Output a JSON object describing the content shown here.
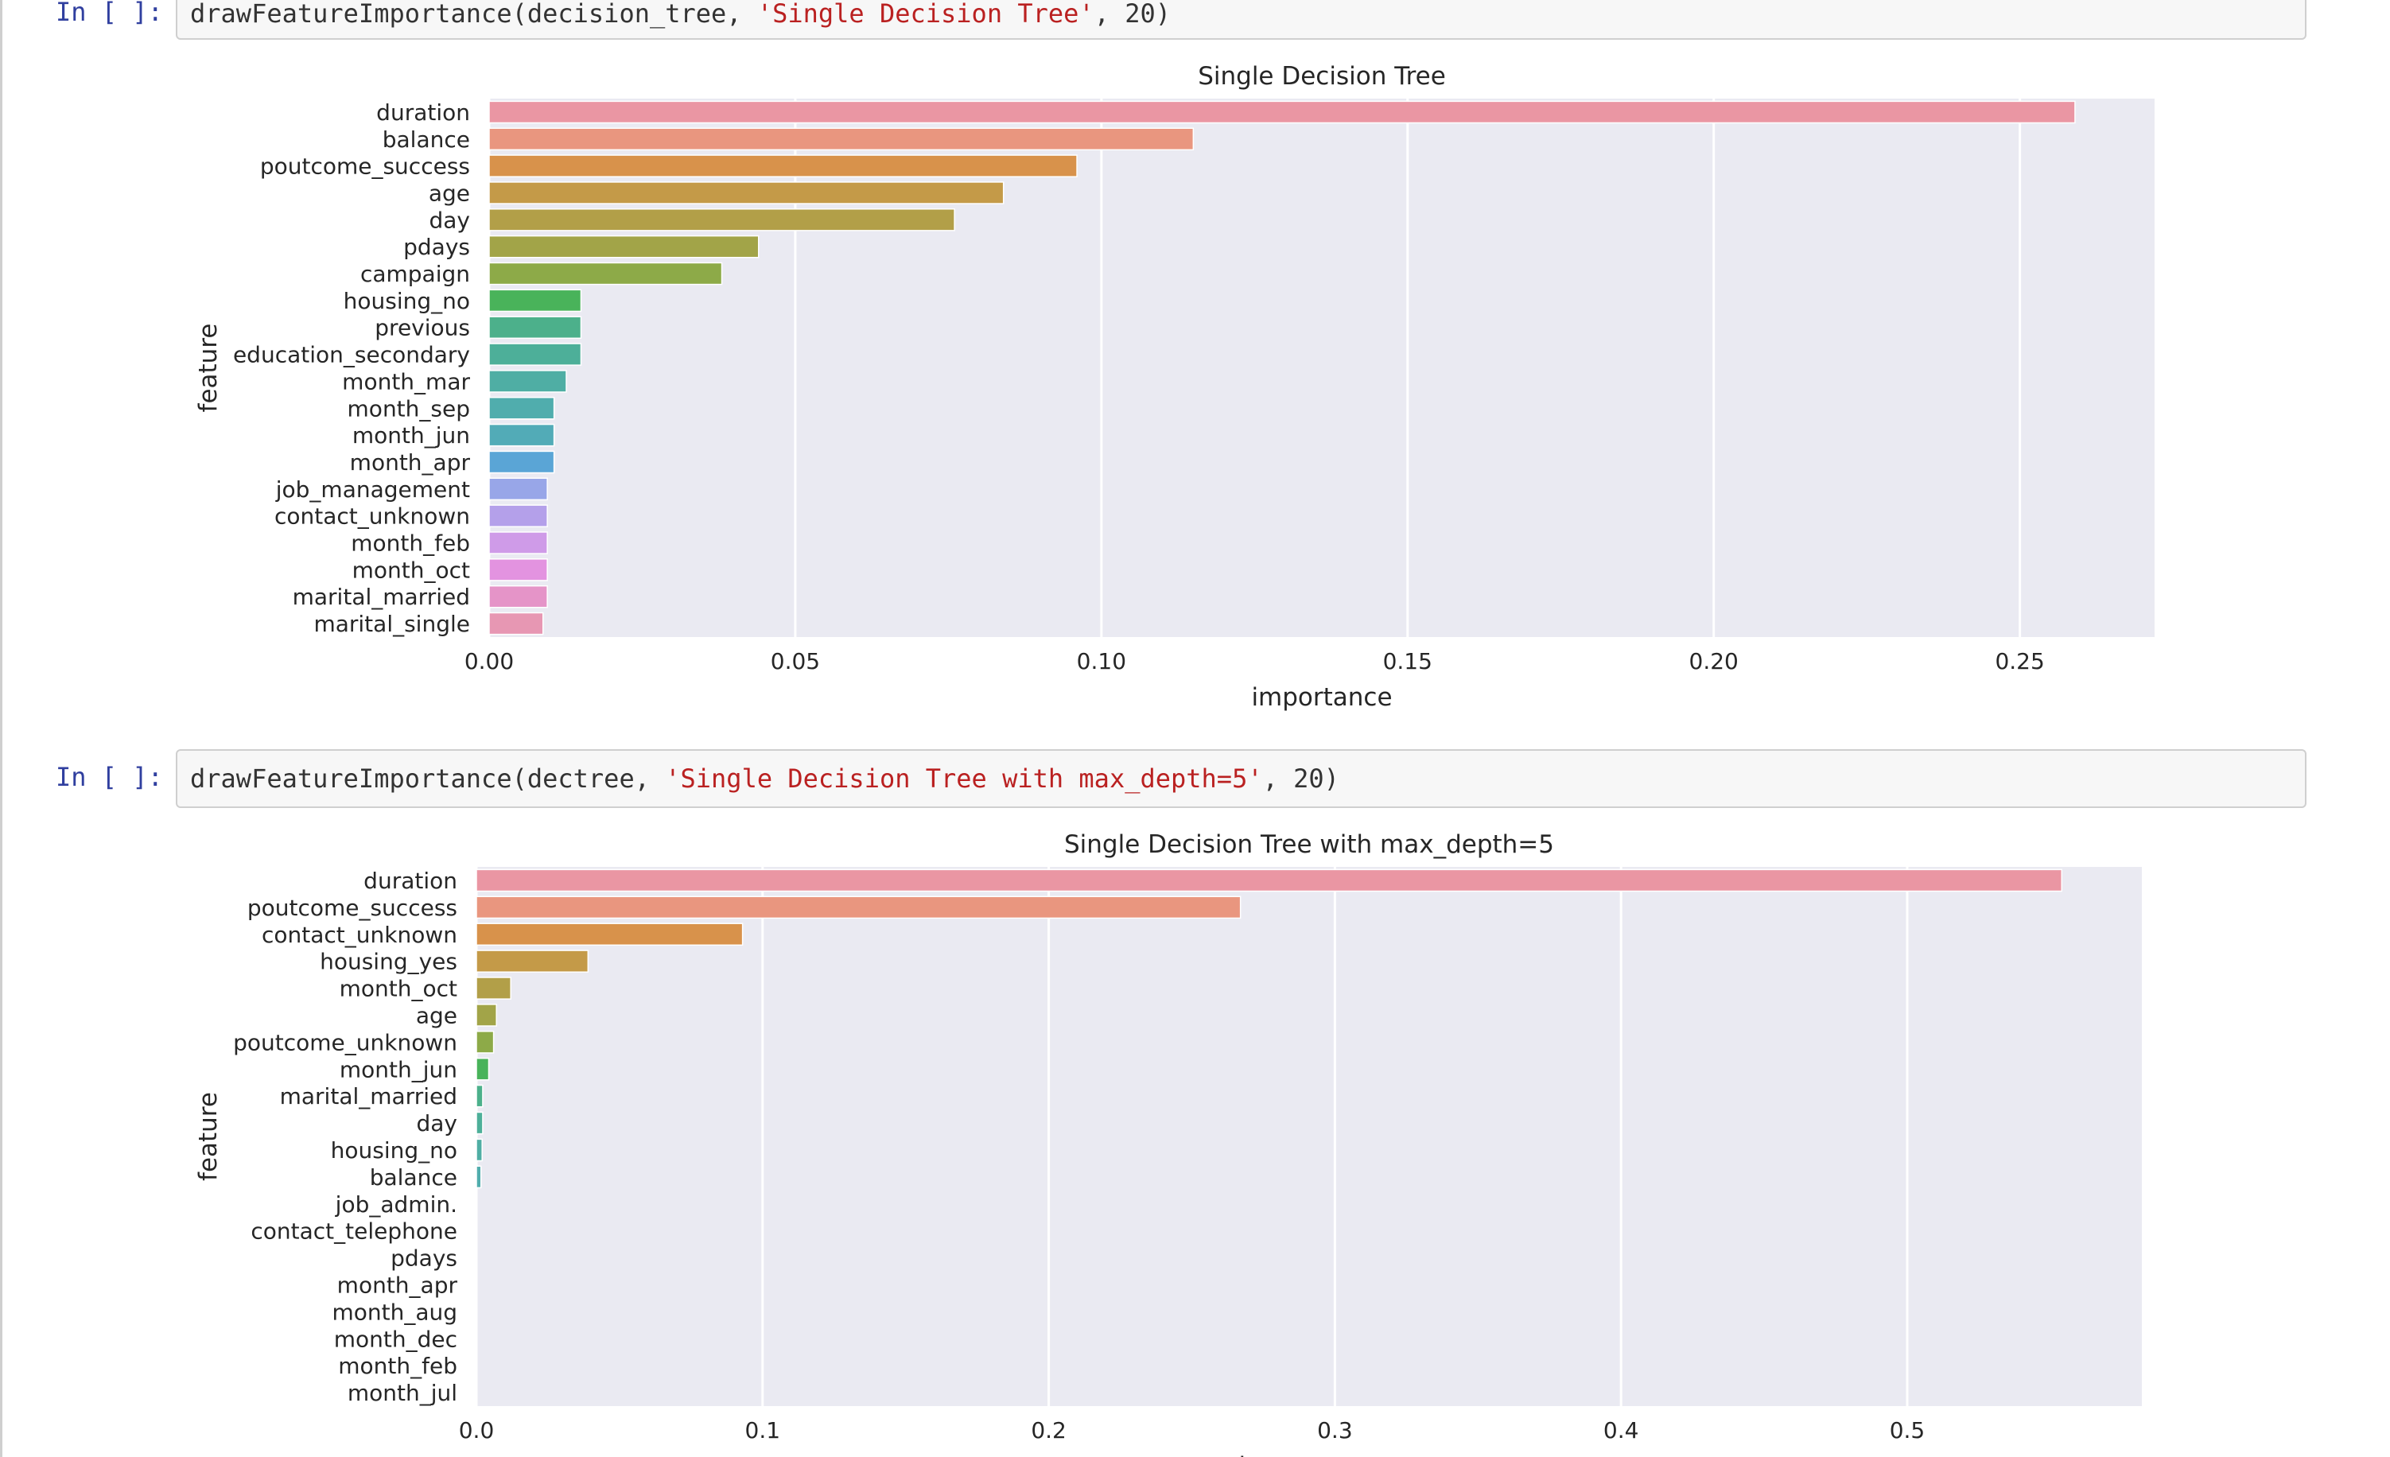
{
  "cells": [
    {
      "prompt": "In [ ]:",
      "code_prefix": "drawFeatureImportance(decision_tree, ",
      "code_string": "'Single Decision Tree'",
      "code_suffix": ", 20)"
    },
    {
      "prompt": "In [ ]:",
      "code_prefix": "drawFeatureImportance(dectree, ",
      "code_string": "'Single Decision Tree with max_depth=5'",
      "code_suffix": ", 20)"
    }
  ],
  "palette": [
    "#ea96a3",
    "#e9967f",
    "#d8924b",
    "#c49a48",
    "#b29f48",
    "#a2a448",
    "#8daa48",
    "#49b35a",
    "#4cb08b",
    "#4daf99",
    "#4faea4",
    "#50adad",
    "#52abb7",
    "#5aa5d6",
    "#98a6e8",
    "#b4a0ea",
    "#cf9be8",
    "#e393e0",
    "#e594c8",
    "#e797b3"
  ],
  "plot_background": "#eaeaf2",
  "chart_data": [
    {
      "type": "bar",
      "orientation": "horizontal",
      "title": "Single Decision Tree",
      "xlabel": "importance",
      "ylabel": "feature",
      "xlim": [
        0,
        0.272
      ],
      "xticks": [
        0,
        0.05,
        0.1,
        0.15,
        0.2,
        0.25
      ],
      "xtick_labels": [
        "0.00",
        "0.05",
        "0.10",
        "0.15",
        "0.20",
        "0.25"
      ],
      "grid": true,
      "categories": [
        "duration",
        "balance",
        "poutcome_success",
        "age",
        "day",
        "pdays",
        "campaign",
        "housing_no",
        "previous",
        "education_secondary",
        "month_mar",
        "month_sep",
        "month_jun",
        "month_apr",
        "job_management",
        "contact_unknown",
        "month_feb",
        "month_oct",
        "marital_married",
        "marital_single"
      ],
      "values": [
        0.259,
        0.115,
        0.096,
        0.084,
        0.076,
        0.044,
        0.038,
        0.015,
        0.015,
        0.015,
        0.0126,
        0.0106,
        0.0106,
        0.0106,
        0.0095,
        0.0095,
        0.0095,
        0.0095,
        0.0095,
        0.0088
      ]
    },
    {
      "type": "bar",
      "orientation": "horizontal",
      "title": "Single Decision Tree with max_depth=5",
      "xlabel": "importance",
      "ylabel": "feature",
      "xlim": [
        0,
        0.582
      ],
      "xticks": [
        0,
        0.1,
        0.2,
        0.3,
        0.4,
        0.5
      ],
      "xtick_labels": [
        "0.0",
        "0.1",
        "0.2",
        "0.3",
        "0.4",
        "0.5"
      ],
      "grid": true,
      "categories": [
        "duration",
        "poutcome_success",
        "contact_unknown",
        "housing_yes",
        "month_oct",
        "age",
        "poutcome_unknown",
        "month_jun",
        "marital_married",
        "day",
        "housing_no",
        "balance",
        "job_admin.",
        "contact_telephone",
        "pdays",
        "month_apr",
        "month_aug",
        "month_dec",
        "month_feb",
        "month_jul"
      ],
      "values": [
        0.554,
        0.267,
        0.093,
        0.039,
        0.012,
        0.007,
        0.006,
        0.0043,
        0.0022,
        0.0022,
        0.002,
        0.0016,
        0,
        0,
        0,
        0,
        0,
        0,
        0,
        0
      ]
    }
  ]
}
